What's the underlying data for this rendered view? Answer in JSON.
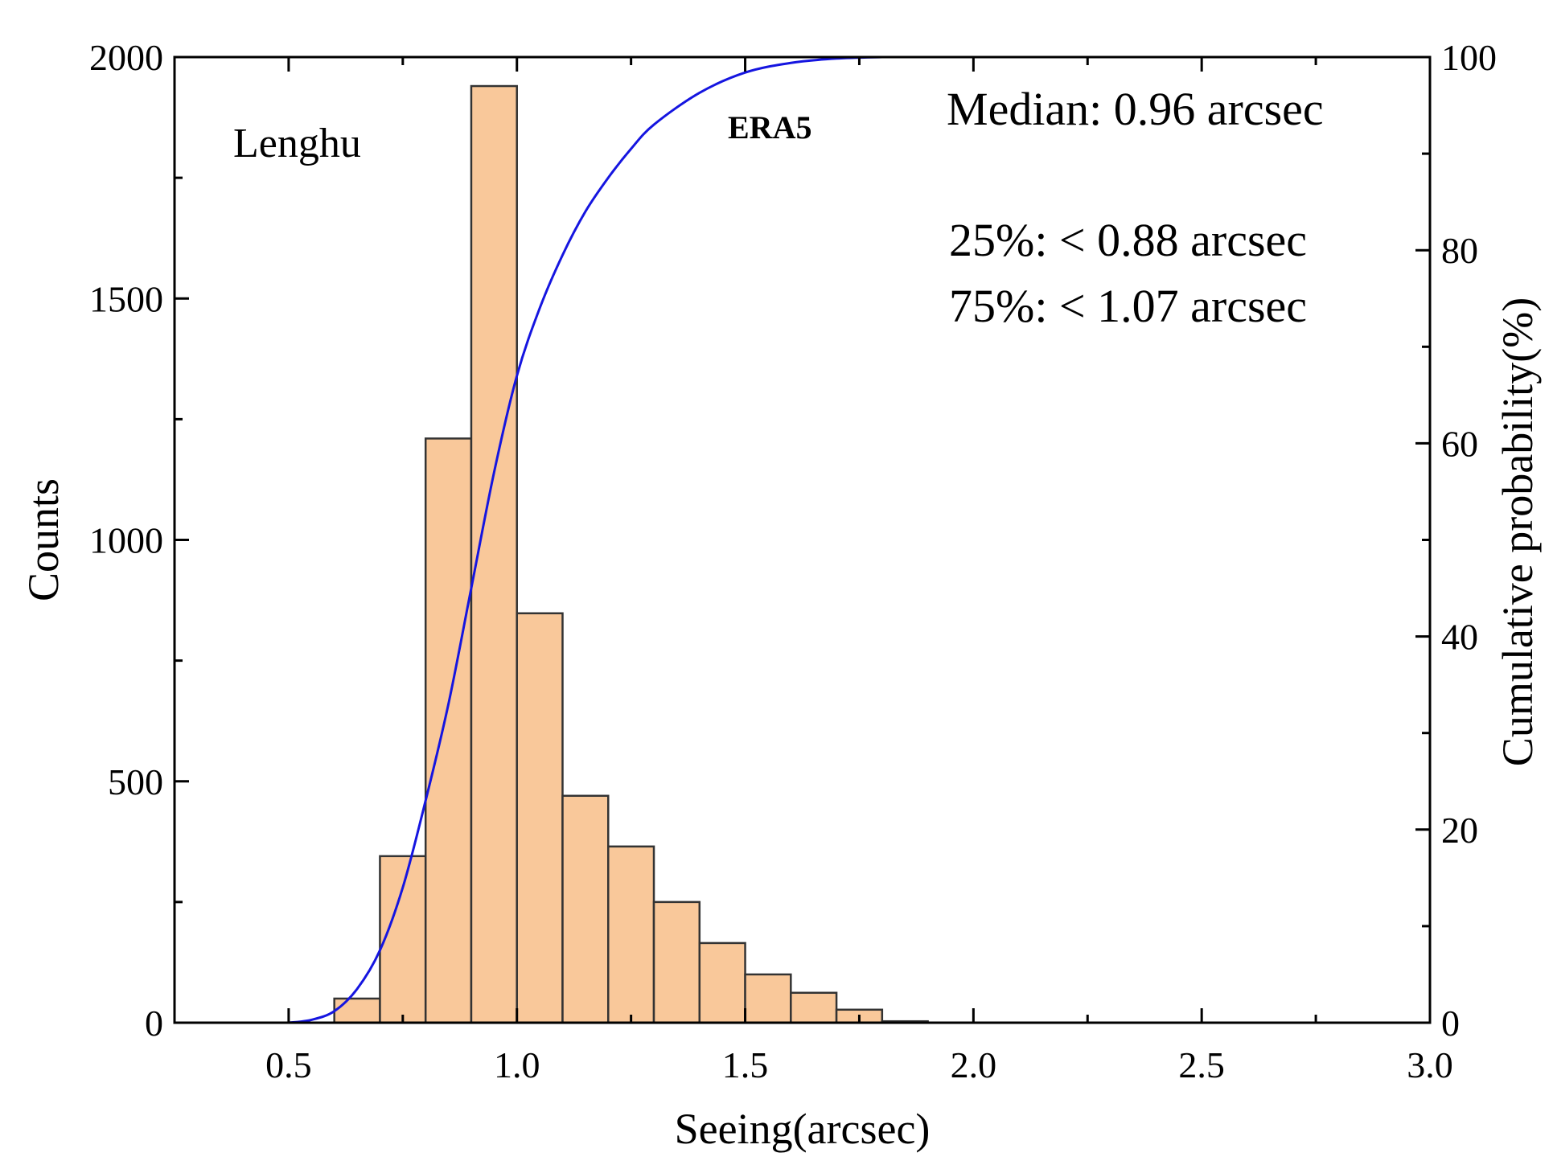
{
  "chart_data": {
    "type": "bar",
    "title": "",
    "xlabel": "Seeing(arcsec)",
    "ylabel": "Counts",
    "y2label": "Cumulative probability(%)",
    "xlim": [
      0.25,
      3.0
    ],
    "ylim": [
      0,
      2000
    ],
    "y2lim": [
      0,
      100
    ],
    "xticks": [
      "0.5",
      "1.0",
      "1.5",
      "2.0",
      "2.5",
      "3.0"
    ],
    "yticks": [
      "0",
      "500",
      "1000",
      "1500",
      "2000"
    ],
    "y2ticks": [
      "0",
      "20",
      "40",
      "60",
      "80",
      "100"
    ],
    "bin_width": 0.1,
    "bin_starts": [
      0.6,
      0.7,
      0.8,
      0.9,
      1.0,
      1.1,
      1.2,
      1.3,
      1.4,
      1.5,
      1.6,
      1.7,
      1.8
    ],
    "counts": [
      50,
      345,
      1210,
      1940,
      848,
      470,
      365,
      250,
      165,
      100,
      62,
      27,
      3
    ],
    "cdf": {
      "name": "Cumulative probability",
      "color": "#1515e0",
      "x": [
        0.5,
        0.55,
        0.6,
        0.65,
        0.7,
        0.75,
        0.8,
        0.85,
        0.9,
        0.95,
        1.0,
        1.05,
        1.1,
        1.15,
        1.2,
        1.25,
        1.3,
        1.4,
        1.5,
        1.6,
        1.7,
        1.8
      ],
      "y": [
        0,
        0.3,
        1.2,
        3.5,
        7.5,
        14,
        23,
        33,
        45,
        57,
        67,
        74,
        79.5,
        84,
        87.5,
        90.5,
        93,
        96.3,
        98.4,
        99.4,
        99.85,
        100
      ]
    },
    "bar_fill": "#f9c89a",
    "bar_edge": "#333333"
  },
  "annotations": {
    "site": "Lenghu",
    "series_tag": "ERA5",
    "median": "Median: 0.96 arcsec",
    "p25": "25%:  < 0.88 arcsec",
    "p75": "75%:  < 1.07 arcsec"
  }
}
